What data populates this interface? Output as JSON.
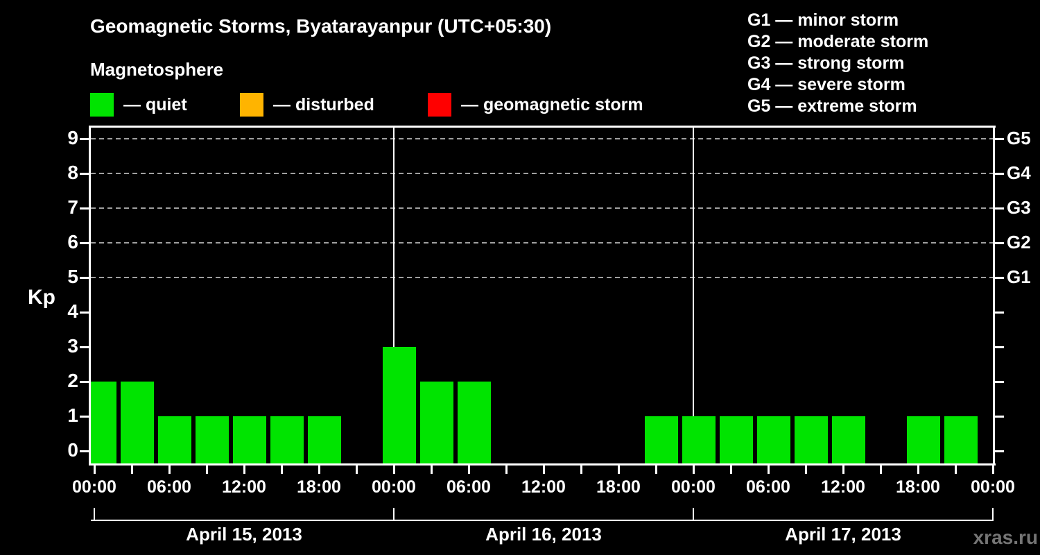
{
  "title": "Geomagnetic Storms, Byatarayanpur (UTC+05:30)",
  "subtitle": "Magnetosphere",
  "watermark": "xras.ru",
  "colors": {
    "background": "#000000",
    "axis": "#FFFFFF",
    "grid": "#A0A0A0",
    "quiet": "#00E400",
    "disturbed": "#FFB400",
    "storm": "#FF0000",
    "watermark": "#757575"
  },
  "legend": [
    {
      "key": "quiet",
      "label": "— quiet"
    },
    {
      "key": "disturbed",
      "label": "— disturbed"
    },
    {
      "key": "storm",
      "label": "— geomagnetic storm"
    }
  ],
  "storm_scale_legend": [
    "G1 — minor storm",
    "G2 — moderate storm",
    "G3 — strong storm",
    "G4 — severe storm",
    "G5 — extreme storm"
  ],
  "chart_data": {
    "type": "bar",
    "title": "Geomagnetic Storms, Byatarayanpur (UTC+05:30)",
    "ylabel": "Kp",
    "ylim": [
      0,
      9
    ],
    "grid": "dashed horizontal at Kp 5-9",
    "y_ticks": [
      0,
      1,
      2,
      3,
      4,
      5,
      6,
      7,
      8,
      9
    ],
    "right_axis_labels": [
      {
        "kp": 5,
        "label": "G1"
      },
      {
        "kp": 6,
        "label": "G2"
      },
      {
        "kp": 7,
        "label": "G3"
      },
      {
        "kp": 8,
        "label": "G4"
      },
      {
        "kp": 9,
        "label": "G5"
      }
    ],
    "grid_levels": [
      5,
      6,
      7,
      8,
      9
    ],
    "hours_per_bar": 3,
    "x_tick_interval_hours": 3,
    "x_label_interval_hours": 6,
    "x_time_labels": [
      "00:00",
      "06:00",
      "12:00",
      "18:00"
    ],
    "days": [
      {
        "date": "April 15, 2013",
        "kp": [
          2,
          2,
          1,
          1,
          1,
          1,
          1,
          0
        ]
      },
      {
        "date": "April 16, 2013",
        "kp": [
          3,
          2,
          2,
          0,
          0,
          0,
          0,
          1
        ]
      },
      {
        "date": "April 17, 2013",
        "kp": [
          1,
          1,
          1,
          1,
          1,
          0,
          1,
          1
        ]
      }
    ]
  }
}
